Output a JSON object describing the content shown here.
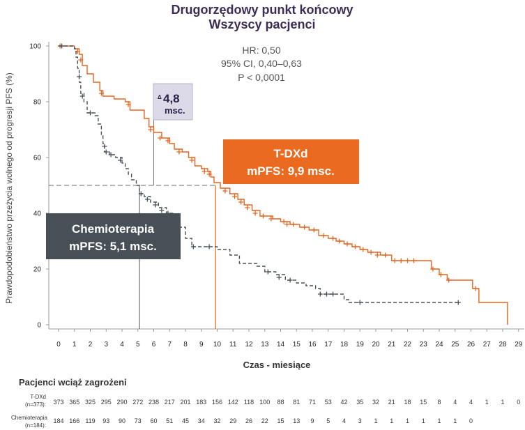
{
  "chart_data": {
    "type": "line",
    "title": "Drugorzędowy punkt końcowy",
    "subtitle": "Wszyscy pacjenci",
    "xlabel": "Czas - miesiące",
    "ylabel": "Prawdopodobieństwo przeżycia wolnego od progresji PFS (%)",
    "xlim": [
      0,
      29
    ],
    "ylim": [
      0,
      100
    ],
    "x_ticks": [
      "0",
      "1",
      "2",
      "3",
      "4",
      "5",
      "6",
      "7",
      "8",
      "9",
      "10",
      "11",
      "12",
      "13",
      "14",
      "15",
      "16",
      "17",
      "18",
      "19",
      "20",
      "21",
      "22",
      "23",
      "24",
      "25",
      "26",
      "27",
      "28",
      "29"
    ],
    "y_ticks": [
      "0",
      "20",
      "40",
      "60",
      "80",
      "100"
    ],
    "grid": false,
    "stats": {
      "hr": "HR: 0,50",
      "ci": "95% CI, 0,40–0,63",
      "p": "P < 0,0001"
    },
    "delta": {
      "symbol": "Δ",
      "value": "4,8",
      "unit": "msc."
    },
    "series": [
      {
        "name": "T-DXd",
        "color": "#e8641e",
        "style": "solid",
        "label_line1": "T-DXd",
        "label_line2": "mPFS: 9,9 msc.",
        "median": 9.9,
        "points": [
          [
            0,
            100
          ],
          [
            1,
            99
          ],
          [
            1.3,
            97
          ],
          [
            1.5,
            93
          ],
          [
            1.8,
            90
          ],
          [
            2.2,
            87
          ],
          [
            2.6,
            84
          ],
          [
            2.8,
            82
          ],
          [
            3.5,
            81
          ],
          [
            4.2,
            80
          ],
          [
            4.5,
            77
          ],
          [
            5.1,
            77
          ],
          [
            5.4,
            74
          ],
          [
            5.7,
            71
          ],
          [
            6,
            69
          ],
          [
            6.5,
            67
          ],
          [
            7,
            65
          ],
          [
            7.3,
            63
          ],
          [
            7.8,
            62
          ],
          [
            8.2,
            60
          ],
          [
            8.6,
            57
          ],
          [
            9,
            56
          ],
          [
            9.4,
            55
          ],
          [
            9.6,
            53
          ],
          [
            9.8,
            51
          ],
          [
            10.2,
            49
          ],
          [
            10.8,
            47
          ],
          [
            11.3,
            45
          ],
          [
            11.7,
            43
          ],
          [
            12.2,
            41
          ],
          [
            12.7,
            39
          ],
          [
            13.5,
            38
          ],
          [
            14,
            37
          ],
          [
            14.6,
            36
          ],
          [
            15.2,
            35
          ],
          [
            15.8,
            34
          ],
          [
            16.4,
            32
          ],
          [
            17,
            31
          ],
          [
            17.5,
            30
          ],
          [
            18,
            29
          ],
          [
            18.5,
            28
          ],
          [
            19,
            27
          ],
          [
            19.5,
            26
          ],
          [
            20.3,
            25
          ],
          [
            21,
            23
          ],
          [
            22.5,
            23
          ],
          [
            23.5,
            20
          ],
          [
            24,
            18
          ],
          [
            24.5,
            16
          ],
          [
            25.5,
            16
          ],
          [
            26.1,
            13
          ],
          [
            26.5,
            8
          ],
          [
            28.2,
            8
          ],
          [
            28.3,
            0
          ]
        ],
        "censored": [
          [
            0.1,
            100
          ],
          [
            1.2,
            98
          ],
          [
            1.4,
            95
          ],
          [
            2.7,
            83
          ],
          [
            4.4,
            79
          ],
          [
            5.8,
            70
          ],
          [
            6.4,
            67
          ],
          [
            6.9,
            66
          ],
          [
            7.6,
            62
          ],
          [
            8.4,
            59
          ],
          [
            9.2,
            55
          ],
          [
            9.5,
            54
          ],
          [
            10.5,
            48
          ],
          [
            11.1,
            46
          ],
          [
            11.5,
            44
          ],
          [
            11.9,
            42
          ],
          [
            12.4,
            40
          ],
          [
            12.9,
            39
          ],
          [
            13.4,
            38
          ],
          [
            14.2,
            37
          ],
          [
            14.4,
            36
          ],
          [
            14.8,
            36
          ],
          [
            15.5,
            35
          ],
          [
            16.1,
            34
          ],
          [
            16.7,
            32
          ],
          [
            17.3,
            31
          ],
          [
            17.7,
            30
          ],
          [
            18.2,
            29
          ],
          [
            18.7,
            28
          ],
          [
            19.2,
            27
          ],
          [
            19.7,
            26
          ],
          [
            20.1,
            25
          ],
          [
            20.6,
            25
          ],
          [
            21.2,
            23
          ],
          [
            21.6,
            23
          ],
          [
            22.0,
            23
          ],
          [
            22.4,
            23
          ],
          [
            23.6,
            20
          ],
          [
            24.1,
            18
          ],
          [
            24.6,
            16
          ],
          [
            26.3,
            13
          ]
        ]
      },
      {
        "name": "Chemioterapia",
        "color": "#4a525a",
        "style": "dashed",
        "label_line1": "Chemioterapia",
        "label_line2": "mPFS: 5,1 msc.",
        "median": 5.1,
        "points": [
          [
            0,
            100
          ],
          [
            1,
            99
          ],
          [
            1.1,
            96
          ],
          [
            1.2,
            92
          ],
          [
            1.3,
            87
          ],
          [
            1.4,
            83
          ],
          [
            1.6,
            80
          ],
          [
            1.8,
            76
          ],
          [
            2.3,
            75
          ],
          [
            2.5,
            72
          ],
          [
            2.7,
            68
          ],
          [
            2.8,
            65
          ],
          [
            2.9,
            62
          ],
          [
            3.2,
            61
          ],
          [
            3.6,
            60
          ],
          [
            4.0,
            58
          ],
          [
            4.2,
            56
          ],
          [
            4.4,
            54
          ],
          [
            4.6,
            52
          ],
          [
            4.9,
            50
          ],
          [
            5.1,
            47
          ],
          [
            5.4,
            46
          ],
          [
            5.8,
            44
          ],
          [
            6.3,
            42
          ],
          [
            6.8,
            40
          ],
          [
            7.2,
            38
          ],
          [
            7.6,
            35
          ],
          [
            8.0,
            31
          ],
          [
            8.4,
            28
          ],
          [
            9.0,
            28
          ],
          [
            10.0,
            27
          ],
          [
            10.8,
            25
          ],
          [
            11.4,
            22
          ],
          [
            12.0,
            22
          ],
          [
            12.5,
            21
          ],
          [
            13.0,
            19
          ],
          [
            13.7,
            18
          ],
          [
            14.3,
            16
          ],
          [
            15.0,
            15
          ],
          [
            15.6,
            14
          ],
          [
            16.2,
            13
          ],
          [
            16.5,
            11
          ],
          [
            18.0,
            9
          ],
          [
            18.3,
            8
          ],
          [
            25.2,
            8
          ]
        ],
        "censored": [
          [
            0.2,
            100
          ],
          [
            1.3,
            89
          ],
          [
            1.5,
            82
          ],
          [
            2.0,
            76
          ],
          [
            2.9,
            64
          ],
          [
            3.0,
            62
          ],
          [
            3.3,
            61
          ],
          [
            3.9,
            59
          ],
          [
            5.2,
            47
          ],
          [
            5.6,
            45
          ],
          [
            6.1,
            43
          ],
          [
            6.5,
            41
          ],
          [
            6.9,
            40
          ],
          [
            7.5,
            37
          ],
          [
            8.5,
            28
          ],
          [
            9.5,
            28
          ],
          [
            13.2,
            19
          ],
          [
            13.9,
            17
          ],
          [
            14.6,
            16
          ],
          [
            16.5,
            11
          ],
          [
            16.9,
            11
          ],
          [
            17.3,
            11
          ],
          [
            19.0,
            8
          ],
          [
            25.2,
            8
          ]
        ]
      }
    ],
    "risk_table": {
      "title": "Pacjenci wciąż zagrożeni",
      "rows": [
        {
          "label_line1": "T-DXd",
          "label_line2": "(n=373):",
          "values": [
            "373",
            "365",
            "325",
            "295",
            "290",
            "272",
            "238",
            "217",
            "201",
            "183",
            "156",
            "142",
            "118",
            "100",
            "88",
            "81",
            "71",
            "53",
            "42",
            "35",
            "32",
            "21",
            "18",
            "15",
            "8",
            "4",
            "4",
            "1",
            "1",
            "0"
          ]
        },
        {
          "label_line1": "Chemioterapia",
          "label_line2": "(n=184):",
          "values": [
            "184",
            "166",
            "119",
            "93",
            "90",
            "73",
            "60",
            "51",
            "45",
            "34",
            "32",
            "29",
            "26",
            "22",
            "15",
            "13",
            "9",
            "5",
            "4",
            "3",
            "1",
            "1",
            "1",
            "1",
            "1",
            "1",
            "0"
          ]
        }
      ]
    }
  }
}
